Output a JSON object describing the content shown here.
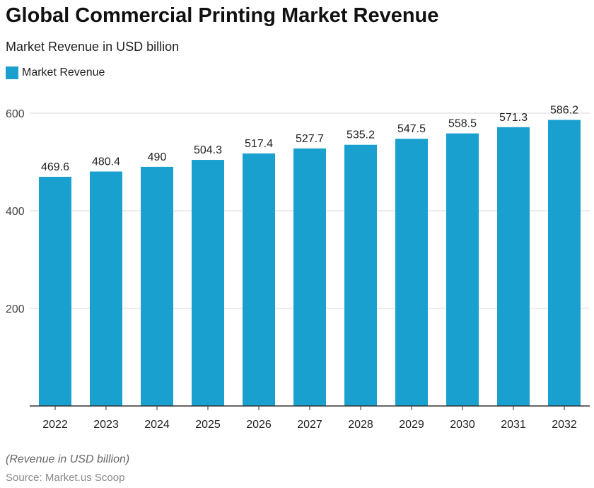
{
  "chart_data": {
    "type": "bar",
    "title": "Global Commercial Printing Market Revenue",
    "subtitle": "Market Revenue in USD billion",
    "legend": [
      {
        "name": "Market Revenue",
        "color": "#1aa0ce"
      }
    ],
    "legend_placement": "top-left",
    "categories": [
      "2022",
      "2023",
      "2024",
      "2025",
      "2026",
      "2027",
      "2028",
      "2029",
      "2030",
      "2031",
      "2032"
    ],
    "series": [
      {
        "name": "Market Revenue",
        "values": [
          469.6,
          480.4,
          490,
          504.3,
          517.4,
          527.7,
          535.2,
          547.5,
          558.5,
          571.3,
          586.2
        ]
      }
    ],
    "data_labels": [
      "469.6",
      "480.4",
      "490",
      "504.3",
      "517.4",
      "527.7",
      "535.2",
      "547.5",
      "558.5",
      "571.3",
      "586.2"
    ],
    "ylim": [
      0,
      600
    ],
    "yticks": [
      200,
      400,
      600
    ],
    "grid": true,
    "xlabel": "",
    "ylabel": "",
    "note": "(Revenue in USD billion)",
    "source": "Source: Market.us Scoop"
  }
}
